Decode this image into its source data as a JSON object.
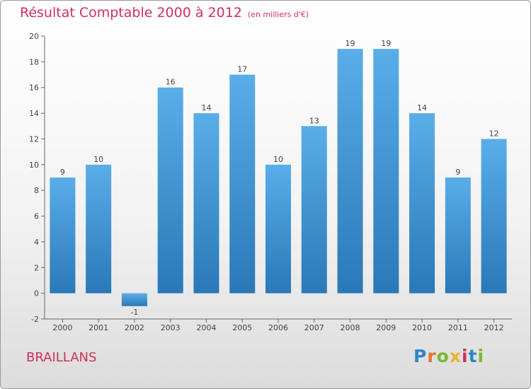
{
  "chart_data": {
    "type": "bar",
    "title": "Résultat Comptable 2000 à 2012",
    "subtitle": "(en milliers d'€)",
    "categories": [
      "2000",
      "2001",
      "2002",
      "2003",
      "2004",
      "2005",
      "2006",
      "2007",
      "2008",
      "2009",
      "2010",
      "2011",
      "2012"
    ],
    "values": [
      9,
      10,
      -1,
      16,
      14,
      17,
      10,
      13,
      19,
      19,
      14,
      9,
      12
    ],
    "ylim": [
      -2,
      20
    ],
    "yticks": [
      -2,
      0,
      2,
      4,
      6,
      8,
      10,
      12,
      14,
      16,
      18,
      20
    ],
    "xlabel": "",
    "ylabel": "",
    "grid": false
  },
  "footer": {
    "commune": "BRAILLANS",
    "logo_letters": [
      {
        "char": "P",
        "color": "#2f86c8"
      },
      {
        "char": "r",
        "color": "#e8732b"
      },
      {
        "char": "o",
        "color": "#7bb82f"
      },
      {
        "char": "x",
        "color": "#e8b62b"
      },
      {
        "char": "i",
        "color": "#d0315a"
      },
      {
        "char": "t",
        "color": "#2f86c8"
      },
      {
        "char": "i",
        "color": "#7bb82f"
      }
    ]
  },
  "colors": {
    "title": "#d0315a",
    "bar_top": "#5aaee8",
    "bar_bottom": "#2a78b8"
  }
}
